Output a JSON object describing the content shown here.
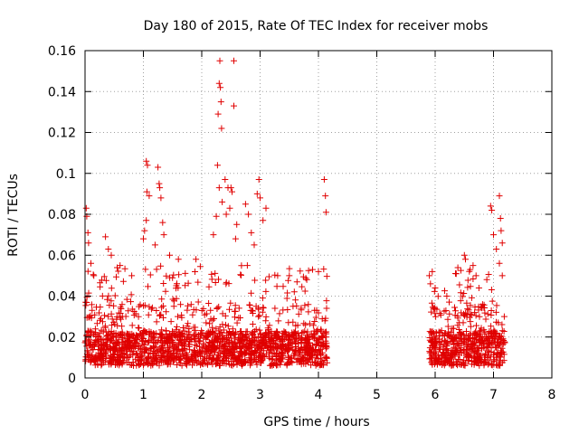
{
  "chart_data": {
    "type": "scatter",
    "title": "Day 180 of 2015, Rate Of TEC Index for receiver mobs",
    "xlabel": "GPS time / hours",
    "ylabel": "ROTI / TECUs",
    "xlim": [
      0,
      8
    ],
    "ylim": [
      0,
      0.16
    ],
    "xticks": [
      0,
      1,
      2,
      3,
      4,
      5,
      6,
      7,
      8
    ],
    "xtick_labels": [
      "0",
      "1",
      "2",
      "3",
      "4",
      "5",
      "6",
      "7",
      "8"
    ],
    "yticks": [
      0,
      0.02,
      0.04,
      0.06,
      0.08,
      0.1,
      0.12,
      0.14,
      0.16
    ],
    "ytick_labels": [
      "0",
      "0.02",
      "0.04",
      "0.06",
      "0.08",
      "0.1",
      "0.12",
      "0.14",
      "0.16"
    ],
    "grid": true,
    "marker": "+",
    "marker_color": "#e00000",
    "series": [
      {
        "name": "ROTI",
        "segments": [
          {
            "x_start": 0.0,
            "x_end": 4.15,
            "typical_range": [
              0.006,
              0.03
            ]
          },
          {
            "x_start": 5.9,
            "x_end": 7.2,
            "typical_range": [
              0.006,
              0.03
            ]
          }
        ],
        "points": [
          {
            "x": 0.02,
            "y": 0.083
          },
          {
            "x": 0.03,
            "y": 0.079
          },
          {
            "x": 0.05,
            "y": 0.071
          },
          {
            "x": 0.06,
            "y": 0.066
          },
          {
            "x": 0.1,
            "y": 0.056
          },
          {
            "x": 0.15,
            "y": 0.05
          },
          {
            "x": 0.35,
            "y": 0.069
          },
          {
            "x": 0.4,
            "y": 0.063
          },
          {
            "x": 0.45,
            "y": 0.06
          },
          {
            "x": 0.6,
            "y": 0.055
          },
          {
            "x": 0.8,
            "y": 0.05
          },
          {
            "x": 1.0,
            "y": 0.068
          },
          {
            "x": 1.02,
            "y": 0.072
          },
          {
            "x": 1.05,
            "y": 0.106
          },
          {
            "x": 1.07,
            "y": 0.104
          },
          {
            "x": 1.06,
            "y": 0.091
          },
          {
            "x": 1.1,
            "y": 0.089
          },
          {
            "x": 1.05,
            "y": 0.077
          },
          {
            "x": 1.25,
            "y": 0.103
          },
          {
            "x": 1.27,
            "y": 0.095
          },
          {
            "x": 1.28,
            "y": 0.093
          },
          {
            "x": 1.3,
            "y": 0.088
          },
          {
            "x": 1.33,
            "y": 0.076
          },
          {
            "x": 1.35,
            "y": 0.07
          },
          {
            "x": 1.2,
            "y": 0.065
          },
          {
            "x": 1.45,
            "y": 0.06
          },
          {
            "x": 1.6,
            "y": 0.058
          },
          {
            "x": 1.9,
            "y": 0.058
          },
          {
            "x": 2.2,
            "y": 0.07
          },
          {
            "x": 2.25,
            "y": 0.079
          },
          {
            "x": 2.27,
            "y": 0.104
          },
          {
            "x": 2.28,
            "y": 0.129
          },
          {
            "x": 2.3,
            "y": 0.144
          },
          {
            "x": 2.31,
            "y": 0.155
          },
          {
            "x": 2.32,
            "y": 0.142
          },
          {
            "x": 2.33,
            "y": 0.135
          },
          {
            "x": 2.34,
            "y": 0.122
          },
          {
            "x": 2.3,
            "y": 0.093
          },
          {
            "x": 2.35,
            "y": 0.086
          },
          {
            "x": 2.4,
            "y": 0.097
          },
          {
            "x": 2.45,
            "y": 0.093
          },
          {
            "x": 2.5,
            "y": 0.093
          },
          {
            "x": 2.52,
            "y": 0.091
          },
          {
            "x": 2.55,
            "y": 0.155
          },
          {
            "x": 2.55,
            "y": 0.133
          },
          {
            "x": 2.42,
            "y": 0.08
          },
          {
            "x": 2.48,
            "y": 0.083
          },
          {
            "x": 2.6,
            "y": 0.075
          },
          {
            "x": 2.58,
            "y": 0.068
          },
          {
            "x": 2.75,
            "y": 0.085
          },
          {
            "x": 2.8,
            "y": 0.08
          },
          {
            "x": 2.85,
            "y": 0.071
          },
          {
            "x": 2.9,
            "y": 0.065
          },
          {
            "x": 2.95,
            "y": 0.09
          },
          {
            "x": 2.98,
            "y": 0.097
          },
          {
            "x": 3.0,
            "y": 0.088
          },
          {
            "x": 3.05,
            "y": 0.077
          },
          {
            "x": 3.1,
            "y": 0.083
          },
          {
            "x": 3.3,
            "y": 0.05
          },
          {
            "x": 3.5,
            "y": 0.05
          },
          {
            "x": 3.8,
            "y": 0.048
          },
          {
            "x": 3.9,
            "y": 0.053
          },
          {
            "x": 4.0,
            "y": 0.052
          },
          {
            "x": 4.1,
            "y": 0.097
          },
          {
            "x": 4.12,
            "y": 0.089
          },
          {
            "x": 4.13,
            "y": 0.081
          },
          {
            "x": 5.9,
            "y": 0.05
          },
          {
            "x": 5.95,
            "y": 0.052
          },
          {
            "x": 5.92,
            "y": 0.046
          },
          {
            "x": 6.0,
            "y": 0.044
          },
          {
            "x": 6.2,
            "y": 0.04
          },
          {
            "x": 6.5,
            "y": 0.06
          },
          {
            "x": 6.52,
            "y": 0.058
          },
          {
            "x": 6.6,
            "y": 0.053
          },
          {
            "x": 6.65,
            "y": 0.055
          },
          {
            "x": 6.7,
            "y": 0.05
          },
          {
            "x": 6.75,
            "y": 0.044
          },
          {
            "x": 6.95,
            "y": 0.084
          },
          {
            "x": 6.97,
            "y": 0.082
          },
          {
            "x": 7.0,
            "y": 0.07
          },
          {
            "x": 7.05,
            "y": 0.063
          },
          {
            "x": 7.1,
            "y": 0.089
          },
          {
            "x": 7.12,
            "y": 0.078
          },
          {
            "x": 7.13,
            "y": 0.072
          },
          {
            "x": 7.15,
            "y": 0.066
          },
          {
            "x": 7.1,
            "y": 0.056
          },
          {
            "x": 7.15,
            "y": 0.05
          }
        ]
      }
    ]
  }
}
